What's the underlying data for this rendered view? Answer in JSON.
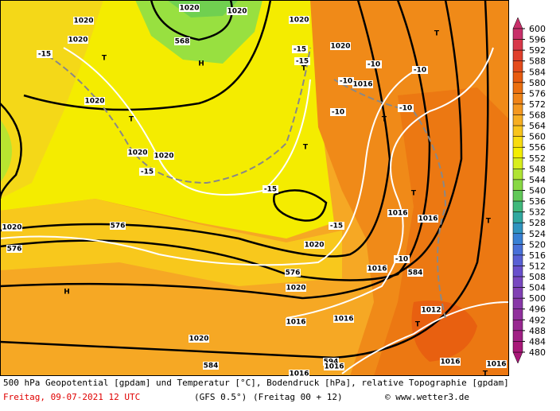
{
  "map": {
    "labels": [
      "1020",
      "1020",
      "1020",
      "1020",
      "1020",
      "568",
      "H",
      "T",
      "-15",
      "-15",
      "-15",
      "T",
      "1020",
      "-10",
      "-10",
      "1016",
      "-10",
      "T",
      "-10",
      "-10",
      "T",
      "1020",
      "T",
      "1020",
      "1020",
      "-15",
      "T",
      "-15",
      "T",
      "1016",
      "1016",
      "T",
      "1020",
      "576",
      "576",
      "-15",
      "1020",
      "-10",
      "576",
      "1016",
      "584",
      "1020",
      "H",
      "1016",
      "1016",
      "1012",
      "T",
      "1020",
      "584",
      "594",
      "1016",
      "1016",
      "1016",
      "1016",
      "T"
    ]
  },
  "colorbar": {
    "levels": [
      600,
      596,
      592,
      588,
      584,
      580,
      576,
      572,
      568,
      564,
      560,
      556,
      552,
      548,
      544,
      540,
      536,
      532,
      528,
      524,
      520,
      516,
      512,
      508,
      504,
      500,
      496,
      492,
      488,
      484,
      480
    ],
    "colors": [
      "#c8306a",
      "#d8384a",
      "#e0402c",
      "#e44c1c",
      "#e85c10",
      "#ec7010",
      "#f08418",
      "#f49820",
      "#f6ae22",
      "#f8c41c",
      "#f8dc10",
      "#f4ee00",
      "#d8ee1c",
      "#b0e434",
      "#88d844",
      "#60c858",
      "#40b87c",
      "#30a8a0",
      "#3094c0",
      "#3880d4",
      "#4870d8",
      "#5860d4",
      "#6850cc",
      "#7848c0",
      "#8040b4",
      "#8838a8",
      "#90309c",
      "#982890",
      "#a02084",
      "#a81878"
    ]
  },
  "footer": {
    "description": "500 hPa Geopotential [gpdam] und Temperatur [°C], Bodendruck [hPa], relative Topographie [gpdam]",
    "date": "Freitag, 09-07-2021  12 UTC",
    "model": "(GFS 0.5°)",
    "run": "(Freitag 00 + 12)",
    "credit": "© www.wetter3.de"
  }
}
